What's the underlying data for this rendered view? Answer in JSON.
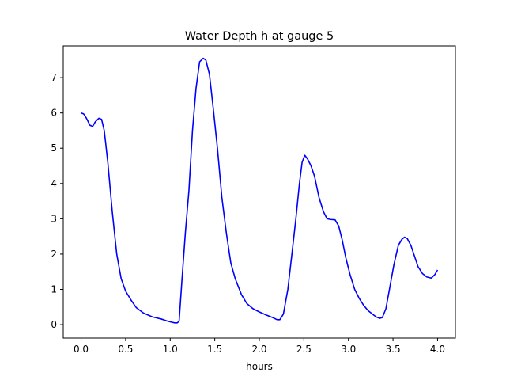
{
  "chart_data": {
    "type": "line",
    "title": "Water Depth h at gauge 5",
    "xlabel": "hours",
    "ylabel": "",
    "xlim": [
      -0.2,
      4.2
    ],
    "ylim": [
      -0.38,
      7.9
    ],
    "xticks": [
      "0.0",
      "0.5",
      "1.0",
      "1.5",
      "2.0",
      "2.5",
      "3.0",
      "3.5",
      "4.0"
    ],
    "yticks": [
      "0",
      "1",
      "2",
      "3",
      "4",
      "5",
      "6",
      "7"
    ],
    "grid": false,
    "series": [
      {
        "color": "#0000ff",
        "x": [
          0.0,
          0.03,
          0.06,
          0.1,
          0.13,
          0.16,
          0.2,
          0.23,
          0.26,
          0.3,
          0.35,
          0.4,
          0.45,
          0.5,
          0.56,
          0.62,
          0.7,
          0.8,
          0.9,
          0.97,
          1.0,
          1.05,
          1.08,
          1.1,
          1.13,
          1.17,
          1.21,
          1.25,
          1.29,
          1.33,
          1.37,
          1.4,
          1.44,
          1.48,
          1.53,
          1.58,
          1.63,
          1.68,
          1.73,
          1.8,
          1.86,
          1.93,
          2.0,
          2.08,
          2.15,
          2.2,
          2.23,
          2.27,
          2.32,
          2.37,
          2.41,
          2.45,
          2.48,
          2.51,
          2.54,
          2.58,
          2.62,
          2.67,
          2.72,
          2.76,
          2.8,
          2.85,
          2.89,
          2.93,
          2.97,
          3.02,
          3.07,
          3.12,
          3.17,
          3.22,
          3.27,
          3.31,
          3.35,
          3.38,
          3.42,
          3.46,
          3.51,
          3.56,
          3.6,
          3.63,
          3.66,
          3.7,
          3.74,
          3.78,
          3.83,
          3.88,
          3.93,
          3.97,
          4.0
        ],
        "y": [
          6.0,
          5.97,
          5.85,
          5.65,
          5.62,
          5.75,
          5.85,
          5.82,
          5.5,
          4.6,
          3.2,
          2.0,
          1.3,
          0.95,
          0.7,
          0.48,
          0.33,
          0.22,
          0.16,
          0.1,
          0.08,
          0.05,
          0.05,
          0.1,
          1.2,
          2.6,
          3.8,
          5.5,
          6.7,
          7.45,
          7.55,
          7.5,
          7.1,
          6.2,
          5.0,
          3.6,
          2.6,
          1.75,
          1.3,
          0.85,
          0.6,
          0.45,
          0.36,
          0.27,
          0.2,
          0.14,
          0.14,
          0.3,
          1.0,
          2.1,
          3.0,
          4.0,
          4.6,
          4.8,
          4.7,
          4.5,
          4.2,
          3.6,
          3.2,
          3.0,
          2.98,
          2.97,
          2.8,
          2.4,
          1.9,
          1.4,
          1.0,
          0.75,
          0.55,
          0.4,
          0.3,
          0.22,
          0.18,
          0.2,
          0.45,
          1.0,
          1.7,
          2.25,
          2.42,
          2.48,
          2.44,
          2.25,
          1.95,
          1.65,
          1.45,
          1.35,
          1.32,
          1.42,
          1.55
        ]
      }
    ]
  }
}
